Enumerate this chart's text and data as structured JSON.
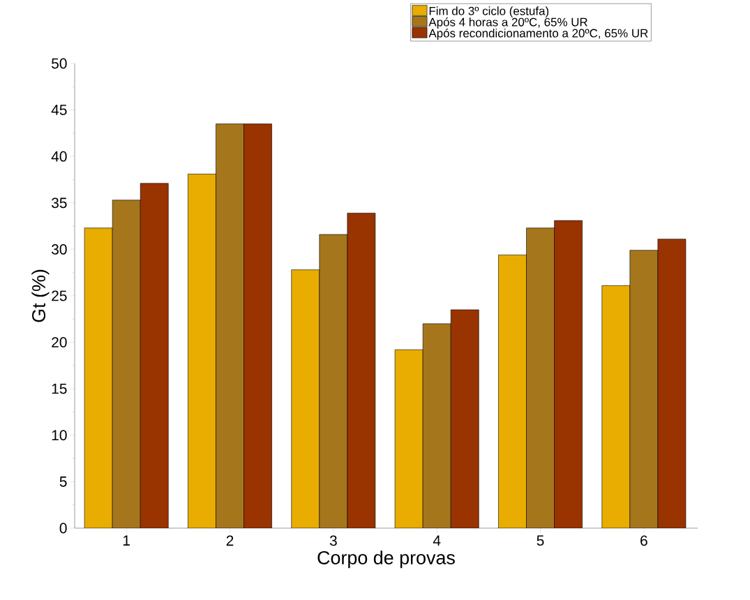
{
  "chart_data": {
    "type": "bar",
    "xlabel": "Corpo de provas",
    "ylabel": "Gt (%)",
    "categories": [
      "1",
      "2",
      "3",
      "4",
      "5",
      "6"
    ],
    "series": [
      {
        "name": "Fim do 3º ciclo (estufa)",
        "color": "#e8ad00",
        "values": [
          32.3,
          38.1,
          27.8,
          19.2,
          29.4,
          26.1
        ]
      },
      {
        "name": "Após 4 horas a 20ºC, 65% UR",
        "color": "#a6761d",
        "values": [
          35.3,
          43.5,
          31.6,
          22.0,
          32.3,
          29.9
        ]
      },
      {
        "name": "Após recondicionamento a 20ºC, 65% UR",
        "color": "#993300",
        "values": [
          37.1,
          43.5,
          33.9,
          23.5,
          33.1,
          31.1
        ]
      }
    ],
    "ylim": [
      0,
      50
    ],
    "yticks": [
      0,
      5,
      10,
      15,
      20,
      25,
      30,
      35,
      40,
      45,
      50
    ],
    "grid": false,
    "legend": "top right"
  }
}
